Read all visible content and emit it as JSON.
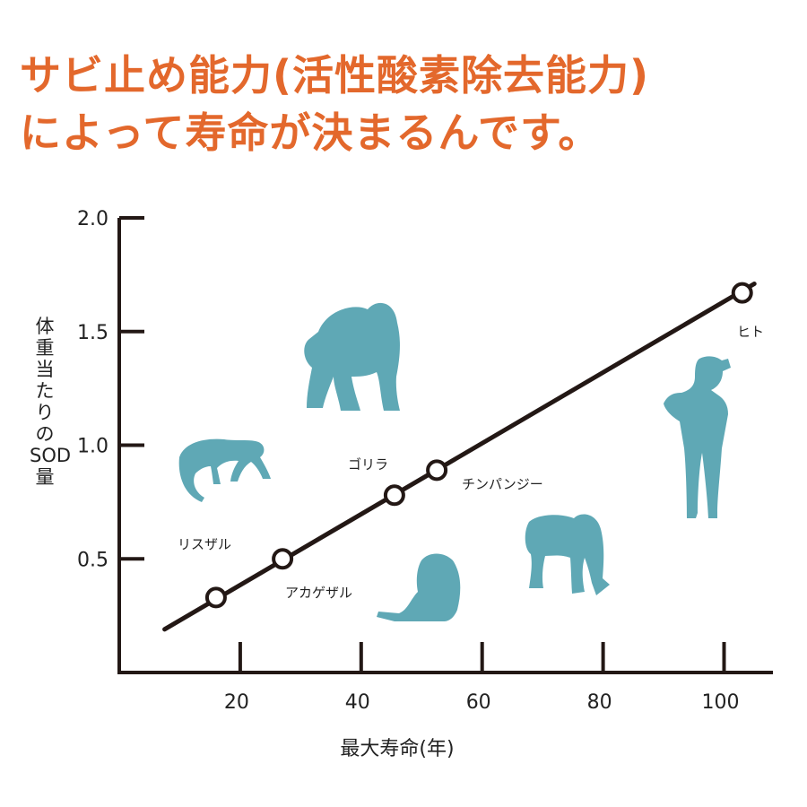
{
  "headline": {
    "line1": "サビ止め能力(活性酸素除去能力)",
    "line2": "によって寿命が決まるんです。"
  },
  "colors": {
    "headline": "#e3682c",
    "silhouette": "#5fa8b5",
    "axis": "#231815"
  },
  "chart_data": {
    "type": "scatter",
    "title": "",
    "xlabel": "最大寿命(年)",
    "ylabel": "体重当たりのSOD量",
    "xlim": [
      0,
      108
    ],
    "ylim": [
      0,
      2.0
    ],
    "x_ticks": [
      20,
      40,
      60,
      80,
      100
    ],
    "y_ticks": [
      0.5,
      1.0,
      1.5,
      2.0
    ],
    "x_tick_labels": [
      "20",
      "40",
      "60",
      "80",
      "100"
    ],
    "y_tick_labels": [
      "0.5",
      "1.0",
      "1.5",
      "2.0"
    ],
    "grid": false,
    "points": [
      {
        "x": 16,
        "y": 0.33
      },
      {
        "x": 27,
        "y": 0.5
      },
      {
        "x": 45.5,
        "y": 0.78
      },
      {
        "x": 52.5,
        "y": 0.89
      },
      {
        "x": 103,
        "y": 1.67
      }
    ],
    "trend_line": {
      "x": [
        7.5,
        105
      ],
      "y": [
        0.19,
        1.71
      ]
    },
    "annotations": [
      "リスザル",
      "アカゲザル",
      "ゴリラ",
      "チンパンジー",
      "ヒト"
    ],
    "silhouettes": [
      "squirrel-monkey-icon",
      "rhesus-macaque-icon",
      "gorilla-icon",
      "chimpanzee-icon",
      "human-icon"
    ]
  }
}
